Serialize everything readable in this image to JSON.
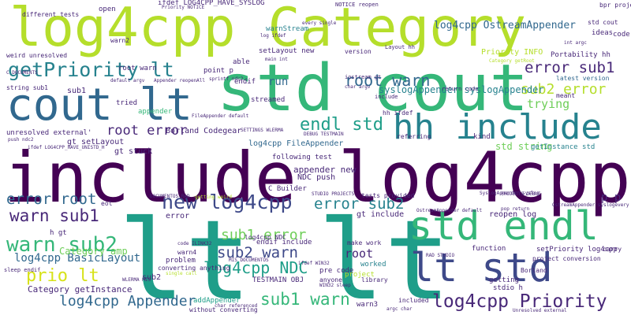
{
  "background": "#ffffff",
  "palette": {
    "p1": "#440154",
    "p2": "#482878",
    "p3": "#3e4989",
    "p4": "#31688e",
    "p5": "#26828e",
    "p6": "#1f9e89",
    "p7": "#35b779",
    "p8": "#6ece58",
    "p9": "#b5de2b",
    "p10": "#d7e219"
  },
  "words": [
    "lt lt",
    "include log4cpp",
    "log4cpp Category",
    "std cout",
    "cout lt",
    "std endl",
    "lt std",
    "hh include",
    "getPriority lt",
    "log4cpp Priority",
    "new log4cpp",
    "log4cpp NDC",
    "warn sub2",
    "root warn",
    "error sub1",
    "endl std",
    "prio lt",
    "warn sub1",
    "error root",
    "sub2 warn",
    "sub1 error",
    "sub1 warn",
    "error sub2",
    "log4cpp Appender",
    "sub2 error",
    "root error",
    "log4cpp OstreamAppender",
    "log4cpp BasicLayout",
    "syslogAppender syslogAppender",
    "trying",
    "root",
    "run",
    "Category amp",
    "Category getInstance",
    "std string",
    "appender new",
    "Borland Codegear",
    "log4cpp FileAppender",
    "ifdef LOG4CPP_HAVE_SYSLOG",
    "setLayout new",
    "NDC push",
    "gt include",
    "reopen log",
    "setPriority log4cpp",
    "getInstance std",
    "gt setLayout",
    "sub1",
    "gt stuck",
    "warnStream",
    "Priority INFO",
    "latest version",
    "following test",
    "p p",
    "unresolved external'",
    "string sub1",
    "weird unresolved",
    "different tests",
    "C Builder",
    "endif include",
    "make work",
    "function",
    "kind",
    "project",
    "library",
    "getting",
    "worked",
    "pre code",
    "included",
    "addAppender",
    "without converting",
    "code pre",
    "Portability hh",
    "sub2",
    "error",
    "warn2",
    "warn3",
    "warn4",
    "h gt",
    "carry",
    "problem",
    "converting anything",
    "TESTMAIN OBJ",
    "anyone",
    "root warn",
    "meant",
    "referring",
    "streamed",
    "tried",
    "appender",
    "point p",
    "able",
    "endif",
    "open",
    "ideas",
    "bpr project",
    "NOTICE reopen",
    "Layout hh",
    "version",
    "iostream gt",
    "return code",
    "std cout",
    "include",
    "sleep endif",
    "SETTINGS WLERMA",
    "DEBUG TESTMAIN",
    "RAD STUDIO",
    "STUDIO PROJECTS",
    "PROJECTS DEBUG",
    "DOCUMENTOS RAD",
    "MIS DOCUMENTOS",
    "WLERMA MIS",
    "project conversion",
    "stdio h",
    "Borland",
    "tests provided",
    "eol",
    "int argc",
    "main int",
    "char argv",
    "log ifdef",
    "hh ifdef",
    "every single",
    "Category getRoot",
    "Unresolved external",
    "OstreamAppender syslogevery",
    "SyslogAppender syslog",
    "OstreamAppender default",
    "pop return",
    "argc char",
    "char referenced",
    "single call",
    "sprintf ndc2",
    "push ndc2",
    "code ILINK32",
    "WIN32 sleep",
    "getting weird",
    "ifdef LOG4CPP_HAVE_UNISTD_H",
    "ifdef WIN32",
    "FileAppender default",
    "Appender reopenAll",
    "default argv",
    "Priority NOTICE",
    "C DOCUMENTS",
    "log4cpp NDC"
  ]
}
